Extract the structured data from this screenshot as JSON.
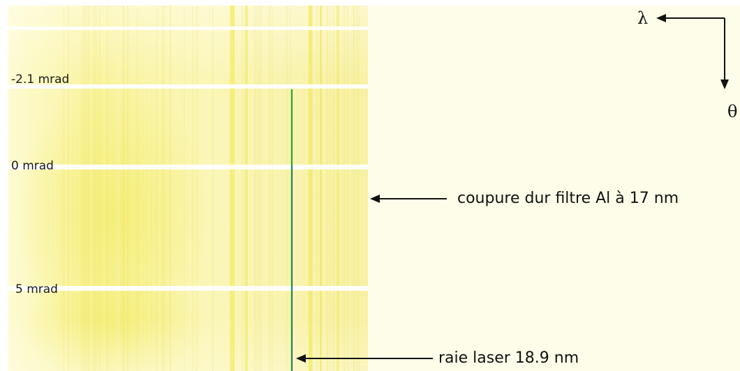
{
  "angle_markers": [
    {
      "label": "-2.1 mrad"
    },
    {
      "label": "0 mrad"
    },
    {
      "label": "5 mrad"
    }
  ],
  "callouts": {
    "filter_cutoff": "coupure dur filtre Al à 17 nm",
    "laser_line": "raie laser 18.9 nm"
  },
  "axes": {
    "wavelength_symbol": "λ",
    "angle_symbol": "θ"
  },
  "colors": {
    "background": "#fdfde9",
    "spectrum_yellow": "#f6f38a",
    "laser_line": "#2aa53a",
    "text": "#111111"
  }
}
